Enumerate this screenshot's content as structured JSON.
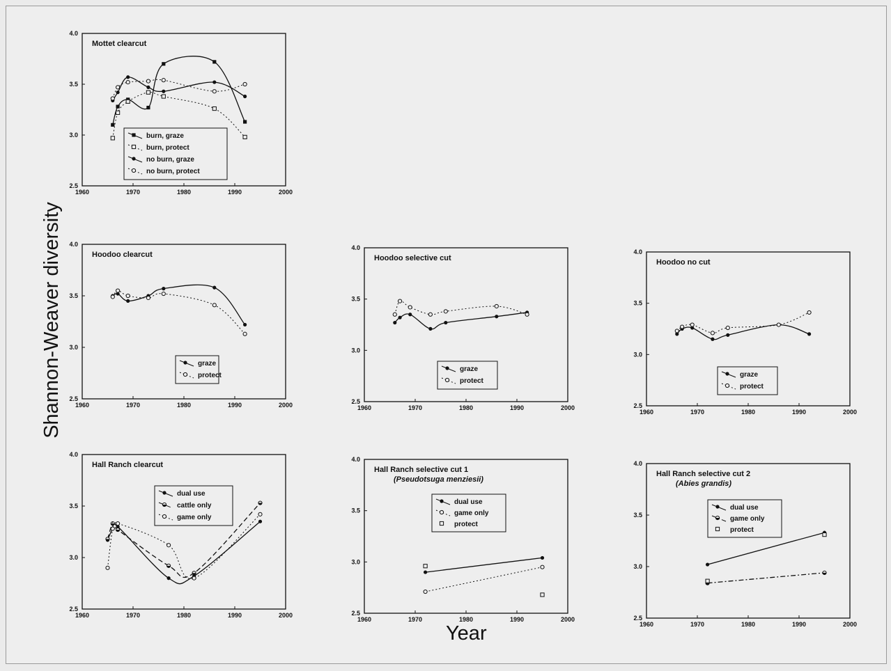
{
  "y_axis_label": "Shannon-Weaver diversity",
  "x_axis_label": "Year",
  "chart_data": [
    {
      "type": "line",
      "title": "Mottet clearcut",
      "xlim": [
        1960,
        2000
      ],
      "ylim": [
        2.5,
        4.0
      ],
      "xticks": [
        "1960",
        "1970",
        "1980",
        "1990",
        "2000"
      ],
      "yticks": [
        "2.5",
        "3.0",
        "3.5",
        "4.0"
      ],
      "legend_position": "bottom-left",
      "series": [
        {
          "name": "burn, graze",
          "marker": "filled-square",
          "line": "solid",
          "x": [
            1966,
            1967,
            1969,
            1973,
            1976,
            1986,
            1992
          ],
          "y": [
            3.1,
            3.28,
            3.35,
            3.27,
            3.7,
            3.72,
            3.13
          ]
        },
        {
          "name": "burn, protect",
          "marker": "open-square",
          "line": "dotted",
          "x": [
            1966,
            1967,
            1969,
            1973,
            1976,
            1986,
            1992
          ],
          "y": [
            2.97,
            3.22,
            3.33,
            3.42,
            3.38,
            3.26,
            2.98
          ]
        },
        {
          "name": "no burn, graze",
          "marker": "filled-circle",
          "line": "solid",
          "x": [
            1966,
            1967,
            1969,
            1973,
            1976,
            1986,
            1992
          ],
          "y": [
            3.34,
            3.42,
            3.57,
            3.47,
            3.43,
            3.52,
            3.38
          ]
        },
        {
          "name": "no burn, protect",
          "marker": "open-circle",
          "line": "dotted",
          "x": [
            1966,
            1967,
            1969,
            1973,
            1976,
            1986,
            1992
          ],
          "y": [
            3.36,
            3.47,
            3.52,
            3.53,
            3.54,
            3.43,
            3.5
          ]
        }
      ]
    },
    {
      "type": "line",
      "title": "Hoodoo clearcut",
      "xlim": [
        1960,
        2000
      ],
      "ylim": [
        2.5,
        4.0
      ],
      "xticks": [
        "1960",
        "1970",
        "1980",
        "1990",
        "2000"
      ],
      "yticks": [
        "2.5",
        "3.0",
        "3.5",
        "4.0"
      ],
      "legend_position": "bottom-center",
      "series": [
        {
          "name": "graze",
          "marker": "filled-circle",
          "line": "solid",
          "x": [
            1966,
            1967,
            1969,
            1973,
            1976,
            1986,
            1992
          ],
          "y": [
            3.5,
            3.52,
            3.45,
            3.5,
            3.57,
            3.58,
            3.22
          ]
        },
        {
          "name": "protect",
          "marker": "open-circle",
          "line": "dotted",
          "x": [
            1966,
            1967,
            1969,
            1973,
            1976,
            1986,
            1992
          ],
          "y": [
            3.49,
            3.55,
            3.5,
            3.48,
            3.52,
            3.41,
            3.13
          ]
        }
      ]
    },
    {
      "type": "line",
      "title": "Hoodoo selective cut",
      "xlim": [
        1960,
        2000
      ],
      "ylim": [
        2.5,
        4.0
      ],
      "xticks": [
        "1960",
        "1970",
        "1980",
        "1990",
        "2000"
      ],
      "yticks": [
        "2.5",
        "3.0",
        "3.5",
        "4.0"
      ],
      "legend_position": "bottom-center",
      "series": [
        {
          "name": "graze",
          "marker": "filled-circle",
          "line": "solid",
          "x": [
            1966,
            1967,
            1969,
            1973,
            1976,
            1986,
            1992
          ],
          "y": [
            3.27,
            3.32,
            3.35,
            3.21,
            3.27,
            3.33,
            3.37
          ]
        },
        {
          "name": "protect",
          "marker": "open-circle",
          "line": "dotted",
          "x": [
            1966,
            1967,
            1969,
            1973,
            1976,
            1986,
            1992
          ],
          "y": [
            3.35,
            3.48,
            3.42,
            3.35,
            3.38,
            3.43,
            3.35
          ]
        }
      ]
    },
    {
      "type": "line",
      "title": "Hoodoo no cut",
      "xlim": [
        1960,
        2000
      ],
      "ylim": [
        2.5,
        4.0
      ],
      "xticks": [
        "1960",
        "1970",
        "1980",
        "1990",
        "2000"
      ],
      "yticks": [
        "2.5",
        "3.0",
        "3.5",
        "4.0"
      ],
      "legend_position": "bottom-center",
      "series": [
        {
          "name": "graze",
          "marker": "filled-circle",
          "line": "solid",
          "x": [
            1966,
            1967,
            1969,
            1973,
            1976,
            1986,
            1992
          ],
          "y": [
            3.2,
            3.25,
            3.26,
            3.15,
            3.19,
            3.29,
            3.2
          ]
        },
        {
          "name": "protect",
          "marker": "open-circle",
          "line": "dotted",
          "x": [
            1966,
            1967,
            1969,
            1973,
            1976,
            1986,
            1992
          ],
          "y": [
            3.23,
            3.27,
            3.29,
            3.21,
            3.26,
            3.29,
            3.41
          ]
        }
      ]
    },
    {
      "type": "line",
      "title": "Hall Ranch clearcut",
      "xlim": [
        1960,
        2000
      ],
      "ylim": [
        2.5,
        4.0
      ],
      "xticks": [
        "1960",
        "1970",
        "1980",
        "1990",
        "2000"
      ],
      "yticks": [
        "2.5",
        "3.0",
        "3.5",
        "4.0"
      ],
      "legend_position": "top-center",
      "series": [
        {
          "name": "dual use",
          "marker": "filled-circle",
          "line": "solid",
          "x": [
            1965,
            1966,
            1967,
            1977,
            1982,
            1995
          ],
          "y": [
            3.17,
            3.28,
            3.3,
            2.8,
            2.82,
            3.35
          ]
        },
        {
          "name": "cattle only",
          "marker": "half-circle",
          "line": "dashed",
          "x": [
            1965,
            1966,
            1967,
            1977,
            1982,
            1995
          ],
          "y": [
            3.18,
            3.33,
            3.27,
            2.92,
            2.85,
            3.53
          ]
        },
        {
          "name": "game only",
          "marker": "open-circle",
          "line": "dotted",
          "x": [
            1965,
            1966,
            1967,
            1977,
            1982,
            1995
          ],
          "y": [
            2.9,
            3.28,
            3.33,
            3.12,
            2.8,
            3.42
          ]
        }
      ]
    },
    {
      "type": "line",
      "title": "Hall Ranch selective cut 1",
      "subtitle": "(Pseudotsuga menziesii)",
      "xlim": [
        1960,
        2000
      ],
      "ylim": [
        2.5,
        4.0
      ],
      "xticks": [
        "1960",
        "1970",
        "1980",
        "1990",
        "2000"
      ],
      "yticks": [
        "2.5",
        "3.0",
        "3.5",
        "4.0"
      ],
      "legend_position": "top-center",
      "series": [
        {
          "name": "dual use",
          "marker": "filled-circle",
          "line": "solid",
          "x": [
            1972,
            1995
          ],
          "y": [
            2.9,
            3.04
          ]
        },
        {
          "name": "game only",
          "marker": "open-circle",
          "line": "dotted",
          "x": [
            1972,
            1995
          ],
          "y": [
            2.71,
            2.95
          ]
        },
        {
          "name": "protect",
          "marker": "open-square",
          "line": "none",
          "x": [
            1972,
            1995
          ],
          "y": [
            2.96,
            2.68
          ]
        }
      ]
    },
    {
      "type": "line",
      "title": "Hall Ranch selective cut 2",
      "subtitle": "(Abies grandis)",
      "xlim": [
        1960,
        2000
      ],
      "ylim": [
        2.5,
        4.0
      ],
      "xticks": [
        "1960",
        "1970",
        "1980",
        "1990",
        "2000"
      ],
      "yticks": [
        "2.5",
        "3.0",
        "3.5",
        "4.0"
      ],
      "legend_position": "top-center",
      "series": [
        {
          "name": "dual use",
          "marker": "filled-circle",
          "line": "solid",
          "x": [
            1972,
            1995
          ],
          "y": [
            3.02,
            3.33
          ]
        },
        {
          "name": "game only",
          "marker": "half-circle",
          "line": "dash-dot",
          "x": [
            1972,
            1995
          ],
          "y": [
            2.84,
            2.94
          ]
        },
        {
          "name": "protect",
          "marker": "open-square",
          "line": "none",
          "x": [
            1972,
            1995
          ],
          "y": [
            2.86,
            3.31
          ]
        }
      ]
    }
  ]
}
